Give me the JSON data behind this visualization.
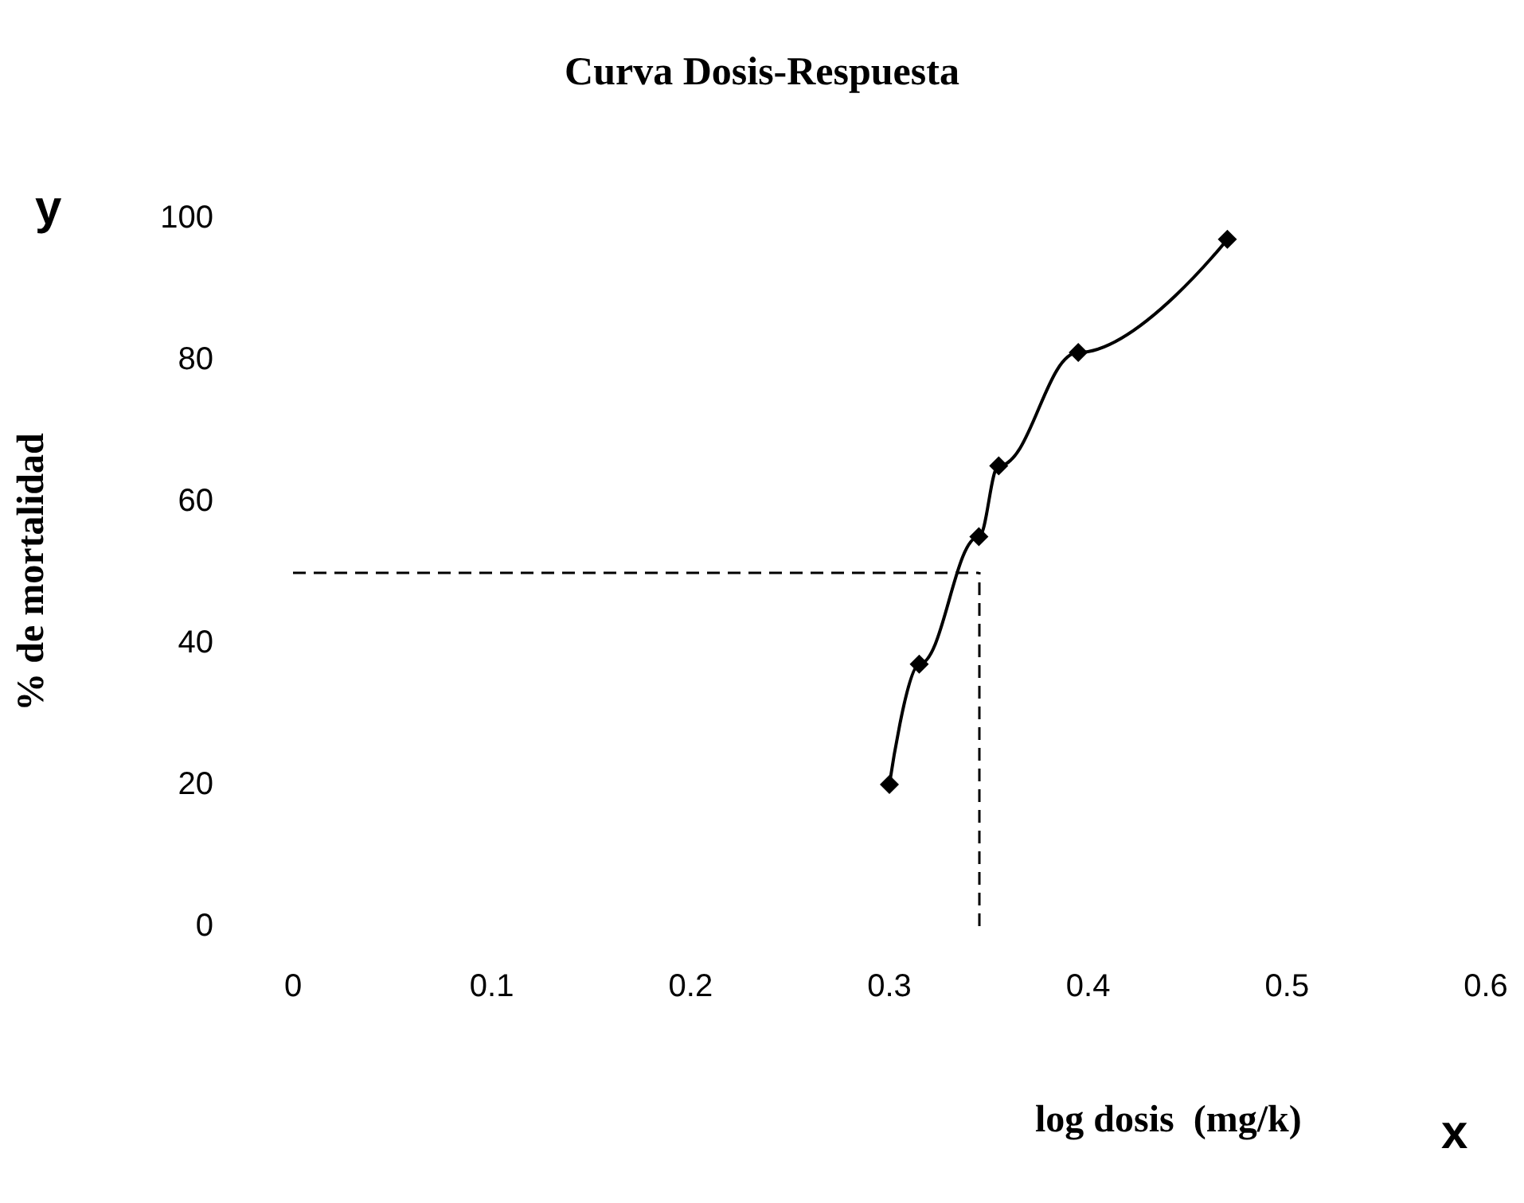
{
  "chart_data": {
    "type": "line",
    "title": "Curva Dosis-Respuesta",
    "xlabel": "log dosis  (mg/k)",
    "ylabel": "% de mortalidad",
    "annotations": [
      "y",
      "x"
    ],
    "x": [
      0.3,
      0.315,
      0.345,
      0.355,
      0.395,
      0.47
    ],
    "series": [
      {
        "color": "#000000",
        "values": [
          20,
          37,
          55,
          65,
          81,
          97
        ]
      }
    ],
    "xlim": [
      0,
      0.6
    ],
    "xticks": [
      0,
      0.1,
      0.2,
      0.3,
      0.4,
      0.5,
      0.6
    ],
    "ylim": [
      0,
      100
    ],
    "yticks": [
      0,
      20,
      40,
      60,
      80,
      100
    ],
    "ref_lines": [
      {
        "axis": "y",
        "value": 50,
        "color": "#000000",
        "line_style": "dashed"
      },
      {
        "axis": "x",
        "value": 0.345,
        "color": "#000000",
        "line_style": "dashed"
      }
    ],
    "marker": "diamond",
    "line_style": "solid",
    "grid": false
  }
}
